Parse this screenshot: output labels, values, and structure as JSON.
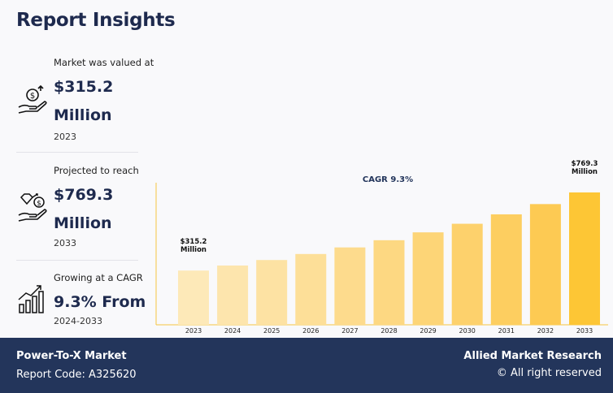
{
  "header": {
    "title": "Report Insights"
  },
  "stats": [
    {
      "label": "Market was valued at",
      "value_line1": "$315.2",
      "value_line2": "Million",
      "year": "2023",
      "icon": "money-hand-icon"
    },
    {
      "label": "Projected to reach",
      "value_line1": "$769.3",
      "value_line2": "Million",
      "year": "2033",
      "icon": "diamond-hand-icon"
    },
    {
      "label": "Growing at a CAGR",
      "value_line1": "9.3% From",
      "value_line2": "",
      "year": "2024-2033",
      "icon": "growth-chart-icon"
    }
  ],
  "chart_data": {
    "type": "bar",
    "categories": [
      "2023",
      "2024",
      "2025",
      "2026",
      "2027",
      "2028",
      "2029",
      "2030",
      "2031",
      "2032",
      "2033"
    ],
    "values": [
      315.2,
      344.5,
      376.5,
      411.5,
      449.8,
      491.6,
      537.3,
      587.3,
      641.9,
      701.6,
      769.3
    ],
    "annotation": "CAGR 9.3%",
    "first_label": [
      "$315.2",
      "Million"
    ],
    "last_label": [
      "$769.3",
      "Million"
    ],
    "ylim": [
      0,
      820
    ],
    "grid": false,
    "colors": [
      "#fde9b8",
      "#fde5ad",
      "#fde2a3",
      "#fddf98",
      "#fddb8d",
      "#fdd882",
      "#fdd577",
      "#fdd16c",
      "#fdce60",
      "#fdca53",
      "#fdc635"
    ]
  },
  "footer": {
    "market_name": "Power-To-X Market",
    "report_code": "Report Code: A325620",
    "publisher": "Allied Market Research",
    "rights": "© All right reserved"
  }
}
